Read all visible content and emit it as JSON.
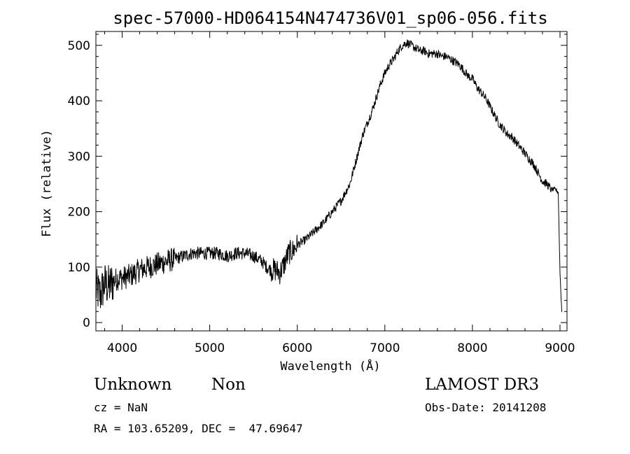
{
  "chart_data": {
    "type": "line",
    "title": "spec-57000-HD064154N474736V01_sp06-056.fits",
    "xlabel": "Wavelength (Å)",
    "ylabel": "Flux (relative)",
    "xlim": [
      3700,
      9080
    ],
    "ylim": [
      -15,
      525
    ],
    "xticks": [
      4000,
      5000,
      6000,
      7000,
      8000,
      9000
    ],
    "yticks": [
      0,
      100,
      200,
      300,
      400,
      500
    ],
    "grid": false,
    "series": [
      {
        "x": [
          3700,
          3750,
          3800,
          3850,
          3900,
          3950,
          4000,
          4100,
          4200,
          4300,
          4400,
          4500,
          4600,
          4700,
          4800,
          4900,
          5000,
          5100,
          5200,
          5300,
          5400,
          5500,
          5600,
          5650,
          5700,
          5750,
          5800,
          5850,
          5900,
          5950,
          6000,
          6100,
          6200,
          6300,
          6400,
          6500,
          6600,
          6650,
          6700,
          6750,
          6800,
          6850,
          6900,
          6950,
          7000,
          7050,
          7100,
          7150,
          7200,
          7250,
          7300,
          7350,
          7400,
          7450,
          7500,
          7550,
          7600,
          7650,
          7700,
          7750,
          7800,
          7850,
          7900,
          7950,
          8000,
          8050,
          8100,
          8150,
          8200,
          8250,
          8300,
          8350,
          8400,
          8450,
          8500,
          8550,
          8600,
          8650,
          8700,
          8750,
          8800,
          8850,
          8900,
          8950,
          8980,
          9000,
          9020
        ],
        "y": [
          60,
          50,
          70,
          65,
          75,
          80,
          80,
          85,
          95,
          100,
          105,
          110,
          115,
          120,
          125,
          125,
          125,
          125,
          120,
          125,
          125,
          120,
          110,
          100,
          95,
          95,
          90,
          105,
          125,
          130,
          140,
          150,
          165,
          180,
          200,
          220,
          250,
          280,
          310,
          340,
          360,
          380,
          405,
          430,
          450,
          465,
          475,
          490,
          500,
          505,
          500,
          495,
          490,
          490,
          485,
          485,
          485,
          480,
          480,
          475,
          470,
          465,
          455,
          445,
          440,
          425,
          415,
          405,
          390,
          375,
          360,
          350,
          340,
          335,
          325,
          315,
          305,
          295,
          285,
          270,
          255,
          250,
          240,
          240,
          235,
          90,
          20
        ]
      }
    ]
  },
  "annotations": {
    "object_type": "Unknown",
    "subclass": "Non",
    "survey": "LAMOST DR3",
    "cz": "cz = NaN",
    "obs_date": "Obs-Date: 20141208",
    "coords": "RA = 103.65209, DEC =  47.69647"
  }
}
